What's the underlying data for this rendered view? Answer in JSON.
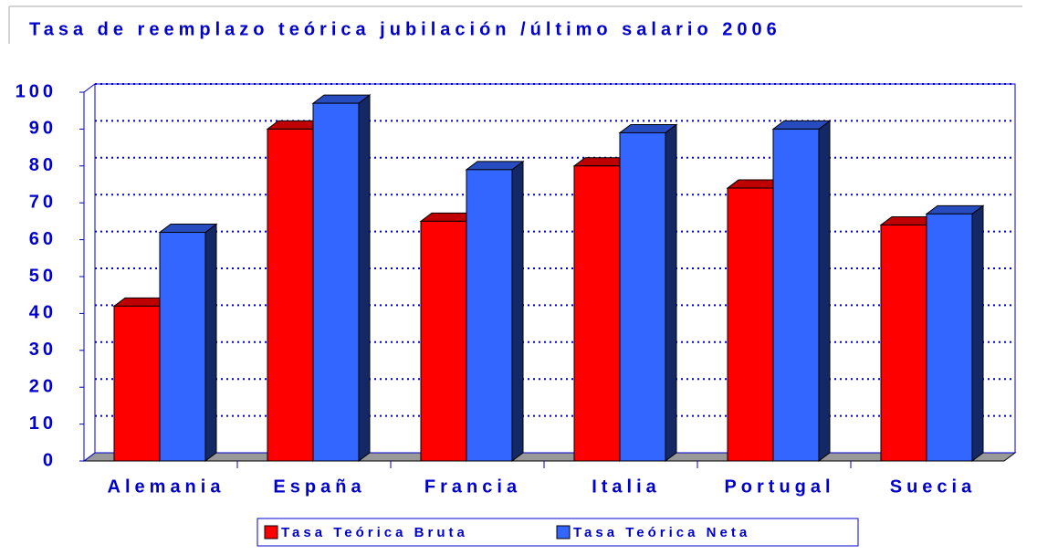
{
  "chart_data": {
    "type": "bar",
    "title": "Tasa de reemplazo teórica jubilación /último salario 2006",
    "categories": [
      "Alemania",
      "España",
      "Francia",
      "Italia",
      "Portugal",
      "Suecia"
    ],
    "series": [
      {
        "name": "Tasa Teórica Bruta",
        "color": "#ff0000",
        "values": [
          42,
          90,
          65,
          80,
          74,
          64
        ]
      },
      {
        "name": "Tasa Teórica Neta",
        "color": "#3366ff",
        "values": [
          62,
          97,
          79,
          89,
          90,
          67
        ]
      }
    ],
    "ylim": [
      0,
      100
    ],
    "yticks": [
      0,
      10,
      20,
      30,
      40,
      50,
      60,
      70,
      80,
      90,
      100
    ],
    "grid": true,
    "legend": "bottom"
  }
}
